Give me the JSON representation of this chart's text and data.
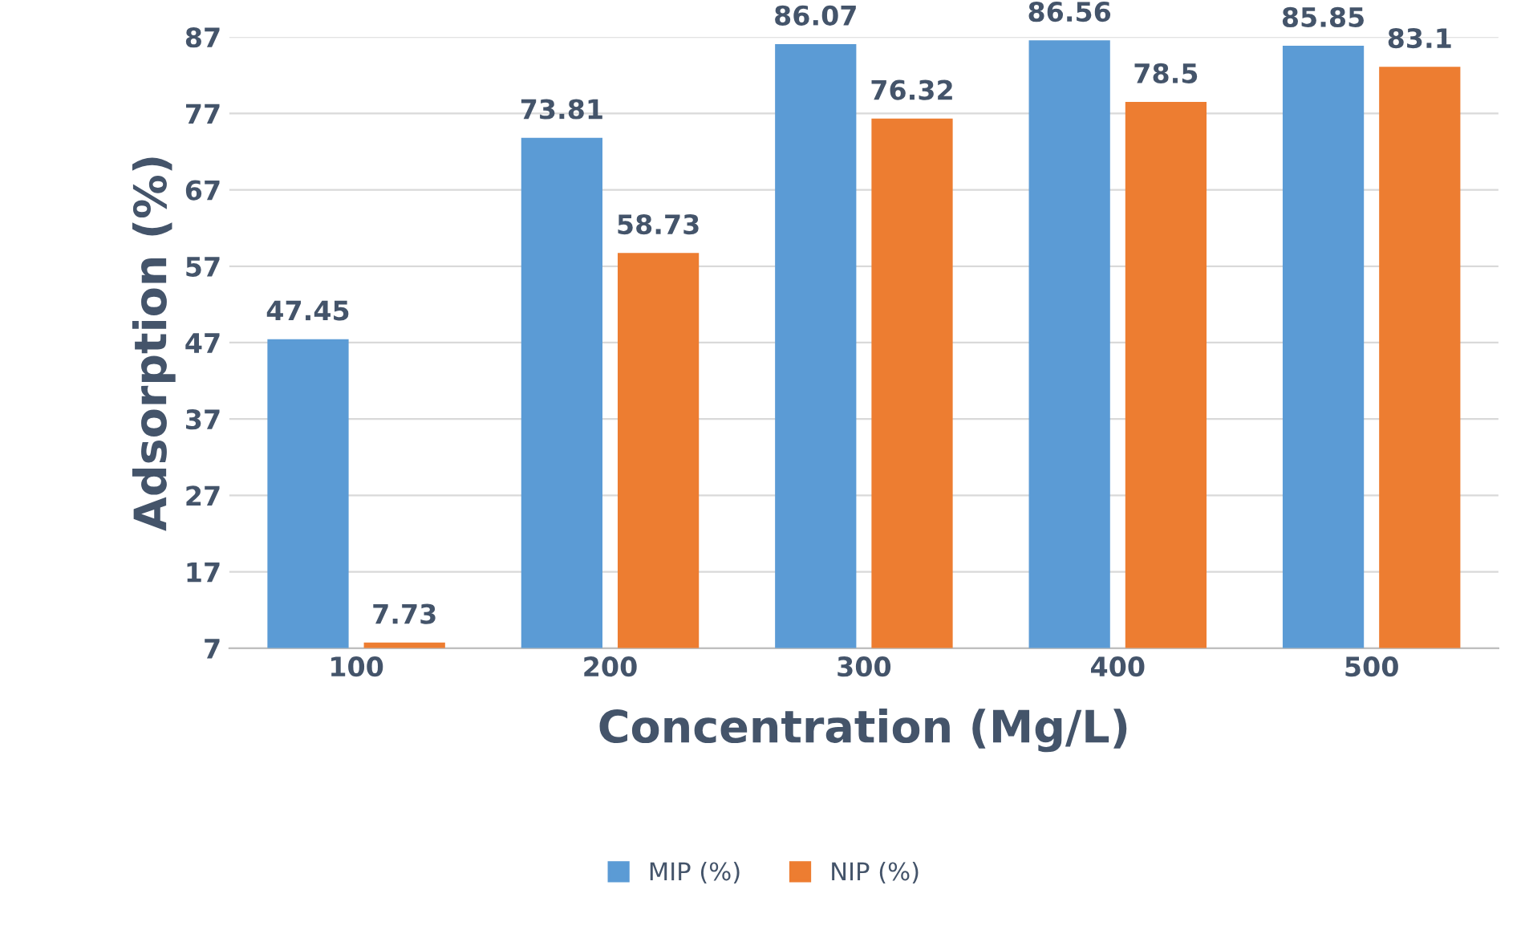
{
  "chart_data": {
    "type": "bar",
    "xlabel": "Concentration (Mg/L)",
    "ylabel": "Adsorption (%)",
    "categories": [
      "100",
      "200",
      "300",
      "400",
      "500"
    ],
    "series": [
      {
        "name": "MIP (%)",
        "color": "#5b9bd5",
        "values": [
          47.45,
          73.81,
          86.07,
          86.56,
          85.85
        ]
      },
      {
        "name": "NIP (%)",
        "color": "#ed7d31",
        "values": [
          7.73,
          58.73,
          76.32,
          78.5,
          83.1
        ]
      }
    ],
    "ylim": [
      7,
      87
    ],
    "yticks": [
      7,
      17,
      27,
      37,
      47,
      57,
      67,
      77,
      87
    ],
    "grid": "y",
    "legend": "bottom",
    "data_labels": true
  }
}
